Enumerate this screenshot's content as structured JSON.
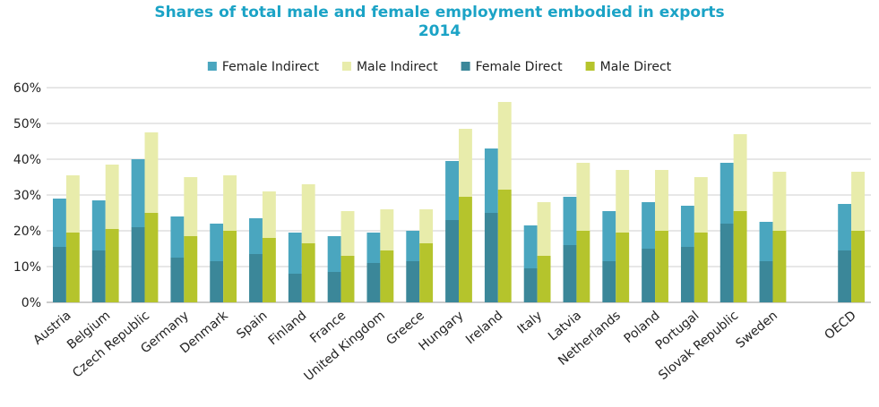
{
  "chart_data": {
    "type": "bar",
    "title_line1": "Shares of total male and female employment embodied in exports",
    "title_line2": "2014",
    "xlabel": "",
    "ylabel": "",
    "ylim": [
      0,
      60
    ],
    "yticks": [
      "0%",
      "10%",
      "20%",
      "30%",
      "40%",
      "50%",
      "60%"
    ],
    "grid": true,
    "legend_position": "top",
    "legend": [
      {
        "name": "Female Indirect",
        "color": "#4aa6bf"
      },
      {
        "name": "Male Indirect",
        "color": "#e8ecab"
      },
      {
        "name": "Female Direct",
        "color": "#3b8799"
      },
      {
        "name": "Male Direct",
        "color": "#b5c42c"
      }
    ],
    "categories": [
      "Austria",
      "Belgium",
      "Czech Republic",
      "Germany",
      "Denmark",
      "Spain",
      "Finland",
      "France",
      "United Kingdom",
      "Greece",
      "Hungary",
      "Ireland",
      "Italy",
      "Latvia",
      "Netherlands",
      "Poland",
      "Portugal",
      "Slovak Republic",
      "Sweden",
      "",
      "OECD"
    ],
    "series": [
      {
        "name": "Female Direct",
        "values": [
          15.5,
          14.5,
          21,
          12.5,
          11.5,
          13.5,
          8,
          8.5,
          11,
          11.5,
          23,
          25,
          9.5,
          16,
          11.5,
          15,
          15.5,
          22,
          11.5,
          null,
          14.5
        ]
      },
      {
        "name": "Female Indirect",
        "values": [
          13.5,
          14,
          19,
          11.5,
          10.5,
          10,
          11.5,
          10,
          8.5,
          8.5,
          16.5,
          18,
          12,
          13.5,
          14,
          13,
          11.5,
          17,
          11,
          null,
          13
        ]
      },
      {
        "name": "Male Direct",
        "values": [
          19.5,
          20.5,
          25,
          18.5,
          20,
          18,
          16.5,
          13,
          14.5,
          16.5,
          29.5,
          31.5,
          13,
          20,
          19.5,
          20,
          19.5,
          25.5,
          20,
          null,
          20
        ]
      },
      {
        "name": "Male Indirect",
        "values": [
          16,
          18,
          22.5,
          16.5,
          15.5,
          13,
          16.5,
          12.5,
          11.5,
          9.5,
          19,
          24.5,
          15,
          19,
          17.5,
          17,
          15.5,
          21.5,
          16.5,
          null,
          16.5
        ]
      }
    ]
  }
}
